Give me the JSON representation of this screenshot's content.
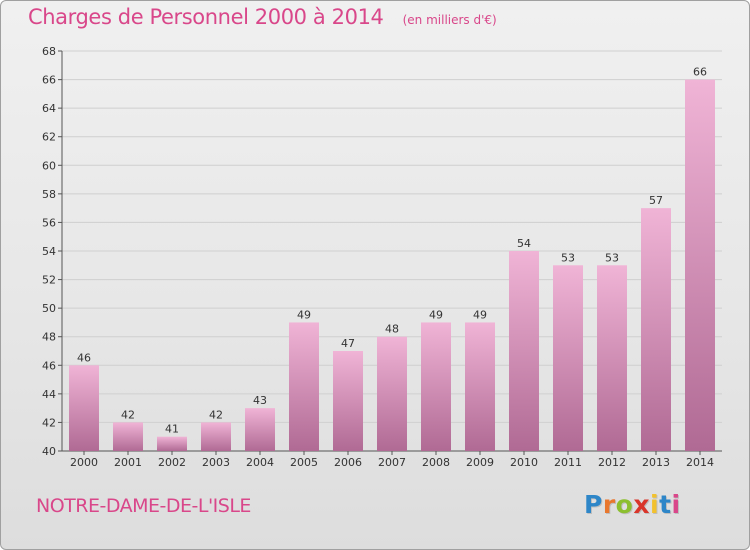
{
  "header": {
    "title": "Charges de Personnel 2000 à 2014",
    "subtitle": "(en milliers d'€)"
  },
  "footer": {
    "commune": "NOTRE-DAME-DE-L'ISLE",
    "logo": "Proxiti",
    "logo_colors": [
      "#2e86c8",
      "#e8772e",
      "#8cbf2f",
      "#d9352a",
      "#f2c12e",
      "#2e86c8",
      "#d9478a"
    ]
  },
  "colors": {
    "title": "#d9478a",
    "bar_light": "#f0b4d6",
    "bar_dark": "#b06a94",
    "grid": "#cfcfcf"
  },
  "chart_data": {
    "type": "bar",
    "title": "Charges de Personnel 2000 à 2014",
    "subtitle": "(en milliers d'€)",
    "xlabel": "",
    "ylabel": "",
    "categories": [
      "2000",
      "2001",
      "2002",
      "2003",
      "2004",
      "2005",
      "2006",
      "2007",
      "2008",
      "2009",
      "2010",
      "2011",
      "2012",
      "2013",
      "2014"
    ],
    "values": [
      46,
      42,
      41,
      42,
      43,
      49,
      47,
      48,
      49,
      49,
      54,
      53,
      53,
      57,
      66
    ],
    "ylim": [
      40,
      68
    ],
    "yticks": [
      40,
      42,
      44,
      46,
      48,
      50,
      52,
      54,
      56,
      58,
      60,
      62,
      64,
      66,
      68
    ],
    "grid": true,
    "data_labels": true
  }
}
